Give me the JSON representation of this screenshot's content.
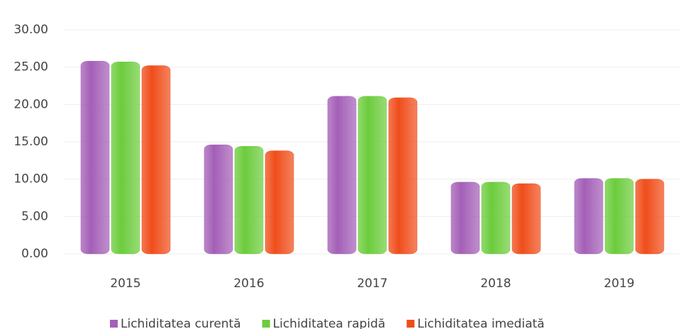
{
  "chart_data": {
    "type": "bar",
    "categories": [
      "2015",
      "2016",
      "2017",
      "2018",
      "2019"
    ],
    "series": [
      {
        "name": "Lichiditatea curentă",
        "color": "#a45fb7",
        "values": [
          25.8,
          14.6,
          21.1,
          9.6,
          10.1
        ]
      },
      {
        "name": "Lichiditatea rapidă",
        "color": "#6ccc3c",
        "values": [
          25.7,
          14.4,
          21.1,
          9.6,
          10.1
        ]
      },
      {
        "name": "Lichiditatea imediată",
        "color": "#f04d1a",
        "values": [
          25.2,
          13.8,
          20.9,
          9.4,
          10.0
        ]
      }
    ],
    "ylim": [
      0,
      30
    ],
    "yticks": [
      {
        "value": 0,
        "label": "0.00"
      },
      {
        "value": 5,
        "label": "5.00"
      },
      {
        "value": 10,
        "label": "10.00"
      },
      {
        "value": 15,
        "label": "15.00"
      },
      {
        "value": 20,
        "label": "20.00"
      },
      {
        "value": 25,
        "label": "25.00"
      },
      {
        "value": 30,
        "label": "30.00"
      }
    ],
    "grid": true,
    "legend": "bottom"
  }
}
